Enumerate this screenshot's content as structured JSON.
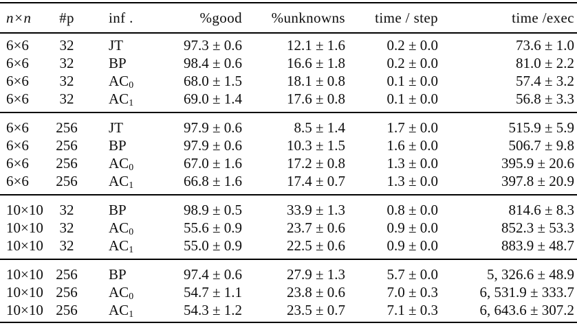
{
  "table": {
    "colors": {
      "text": "#0d0d0d",
      "rule": "#000000",
      "background": "#ffffff"
    },
    "columns": [
      {
        "key": "grid",
        "label": "n×n"
      },
      {
        "key": "particles",
        "label": "#p"
      },
      {
        "key": "inference",
        "label": "inf ."
      },
      {
        "key": "good",
        "label": "%good"
      },
      {
        "key": "unknowns",
        "label": "%unknowns"
      },
      {
        "key": "time-step",
        "label": "time / step"
      },
      {
        "key": "time-exec",
        "label": "time /exec"
      }
    ],
    "groups": [
      {
        "rows": [
          [
            "6×6",
            "32",
            "JT",
            "97.3 ± 0.6",
            "12.1 ± 1.6",
            "0.2 ± 0.0",
            "73.6 ± 1.0"
          ],
          [
            "6×6",
            "32",
            "BP",
            "98.4 ± 0.6",
            "16.6 ± 1.8",
            "0.2 ± 0.0",
            "81.0 ± 2.2"
          ],
          [
            "6×6",
            "32",
            "AC₀",
            "68.0 ± 1.5",
            "18.1 ± 0.8",
            "0.1 ± 0.0",
            "57.4 ± 3.2"
          ],
          [
            "6×6",
            "32",
            "AC₁",
            "69.0 ± 1.4",
            "17.6 ± 0.8",
            "0.1 ± 0.0",
            "56.8 ± 3.3"
          ]
        ]
      },
      {
        "rows": [
          [
            "6×6",
            "256",
            "JT",
            "97.9 ± 0.6",
            "8.5 ± 1.4",
            "1.7 ± 0.0",
            "515.9 ± 5.9"
          ],
          [
            "6×6",
            "256",
            "BP",
            "97.9 ± 0.6",
            "10.3 ± 1.5",
            "1.6 ± 0.0",
            "506.7 ± 9.8"
          ],
          [
            "6×6",
            "256",
            "AC₀",
            "67.0 ± 1.6",
            "17.2 ± 0.8",
            "1.3 ± 0.0",
            "395.9 ± 20.6"
          ],
          [
            "6×6",
            "256",
            "AC₁",
            "66.8 ± 1.6",
            "17.4 ± 0.7",
            "1.3 ± 0.0",
            "397.8 ± 20.9"
          ]
        ]
      },
      {
        "rows": [
          [
            "10×10",
            "32",
            "BP",
            "98.9 ± 0.5",
            "33.9 ± 1.3",
            "0.8 ± 0.0",
            "814.6 ± 8.3"
          ],
          [
            "10×10",
            "32",
            "AC₀",
            "55.6 ± 0.9",
            "23.7 ± 0.6",
            "0.9 ± 0.0",
            "852.3 ± 53.3"
          ],
          [
            "10×10",
            "32",
            "AC₁",
            "55.0 ± 0.9",
            "22.5 ± 0.6",
            "0.9 ± 0.0",
            "883.9 ± 48.7"
          ]
        ]
      },
      {
        "rows": [
          [
            "10×10",
            "256",
            "BP",
            "97.4 ± 0.6",
            "27.9 ± 1.3",
            "5.7 ± 0.0",
            "5, 326.6 ± 48.9"
          ],
          [
            "10×10",
            "256",
            "AC₀",
            "54.7 ± 1.1",
            "23.8 ± 0.6",
            "7.0 ± 0.3",
            "6, 531.9 ± 333.7"
          ],
          [
            "10×10",
            "256",
            "AC₁",
            "54.3 ± 1.2",
            "23.5 ± 0.7",
            "7.1 ± 0.3",
            "6, 643.6 ± 307.2"
          ]
        ]
      }
    ]
  }
}
